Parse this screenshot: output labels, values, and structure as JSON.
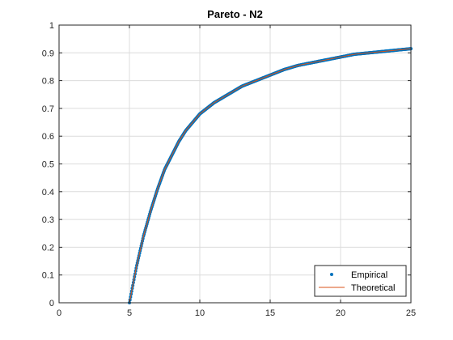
{
  "chart_data": {
    "type": "line",
    "title": "Pareto  - N2",
    "xlabel": "",
    "ylabel": "",
    "xlim": [
      0,
      25
    ],
    "ylim": [
      0,
      1
    ],
    "xticks": [
      "0",
      "5",
      "10",
      "15",
      "20",
      "25"
    ],
    "yticks": [
      "0",
      "0.1",
      "0.2",
      "0.3",
      "0.4",
      "0.5",
      "0.6",
      "0.7",
      "0.8",
      "0.9",
      "1"
    ],
    "grid": true,
    "legend_position": "bottom-right",
    "series": [
      {
        "name": "Empirical",
        "style": "markers",
        "color": "#0072BD",
        "x": [
          5.0,
          5.5,
          6.0,
          6.5,
          7.0,
          7.5,
          8.0,
          8.5,
          9.0,
          9.5,
          10.0,
          11.0,
          12.0,
          13.0,
          14.0,
          15.0,
          16.0,
          17.0,
          18.0,
          19.0,
          20.0,
          21.0,
          22.0,
          23.0,
          24.0,
          25.0
        ],
        "y": [
          0.0,
          0.13,
          0.24,
          0.33,
          0.41,
          0.48,
          0.53,
          0.58,
          0.62,
          0.65,
          0.68,
          0.72,
          0.75,
          0.78,
          0.8,
          0.82,
          0.84,
          0.855,
          0.865,
          0.875,
          0.885,
          0.895,
          0.9,
          0.905,
          0.91,
          0.915
        ]
      },
      {
        "name": "Theoretical",
        "style": "line",
        "color": "#D95319",
        "x": [
          0,
          5.0,
          5.5,
          6.0,
          6.5,
          7.0,
          7.5,
          8.0,
          8.5,
          9.0,
          9.5,
          10.0,
          11.0,
          12.0,
          13.0,
          14.0,
          15.0,
          16.0,
          17.0,
          18.0,
          19.0,
          20.0,
          21.0,
          22.0,
          23.0,
          24.0,
          25.0
        ],
        "y": [
          0,
          0.0,
          0.13,
          0.24,
          0.33,
          0.41,
          0.48,
          0.53,
          0.58,
          0.62,
          0.65,
          0.68,
          0.72,
          0.75,
          0.78,
          0.8,
          0.82,
          0.84,
          0.855,
          0.865,
          0.875,
          0.885,
          0.895,
          0.9,
          0.905,
          0.91,
          0.915
        ]
      }
    ]
  }
}
